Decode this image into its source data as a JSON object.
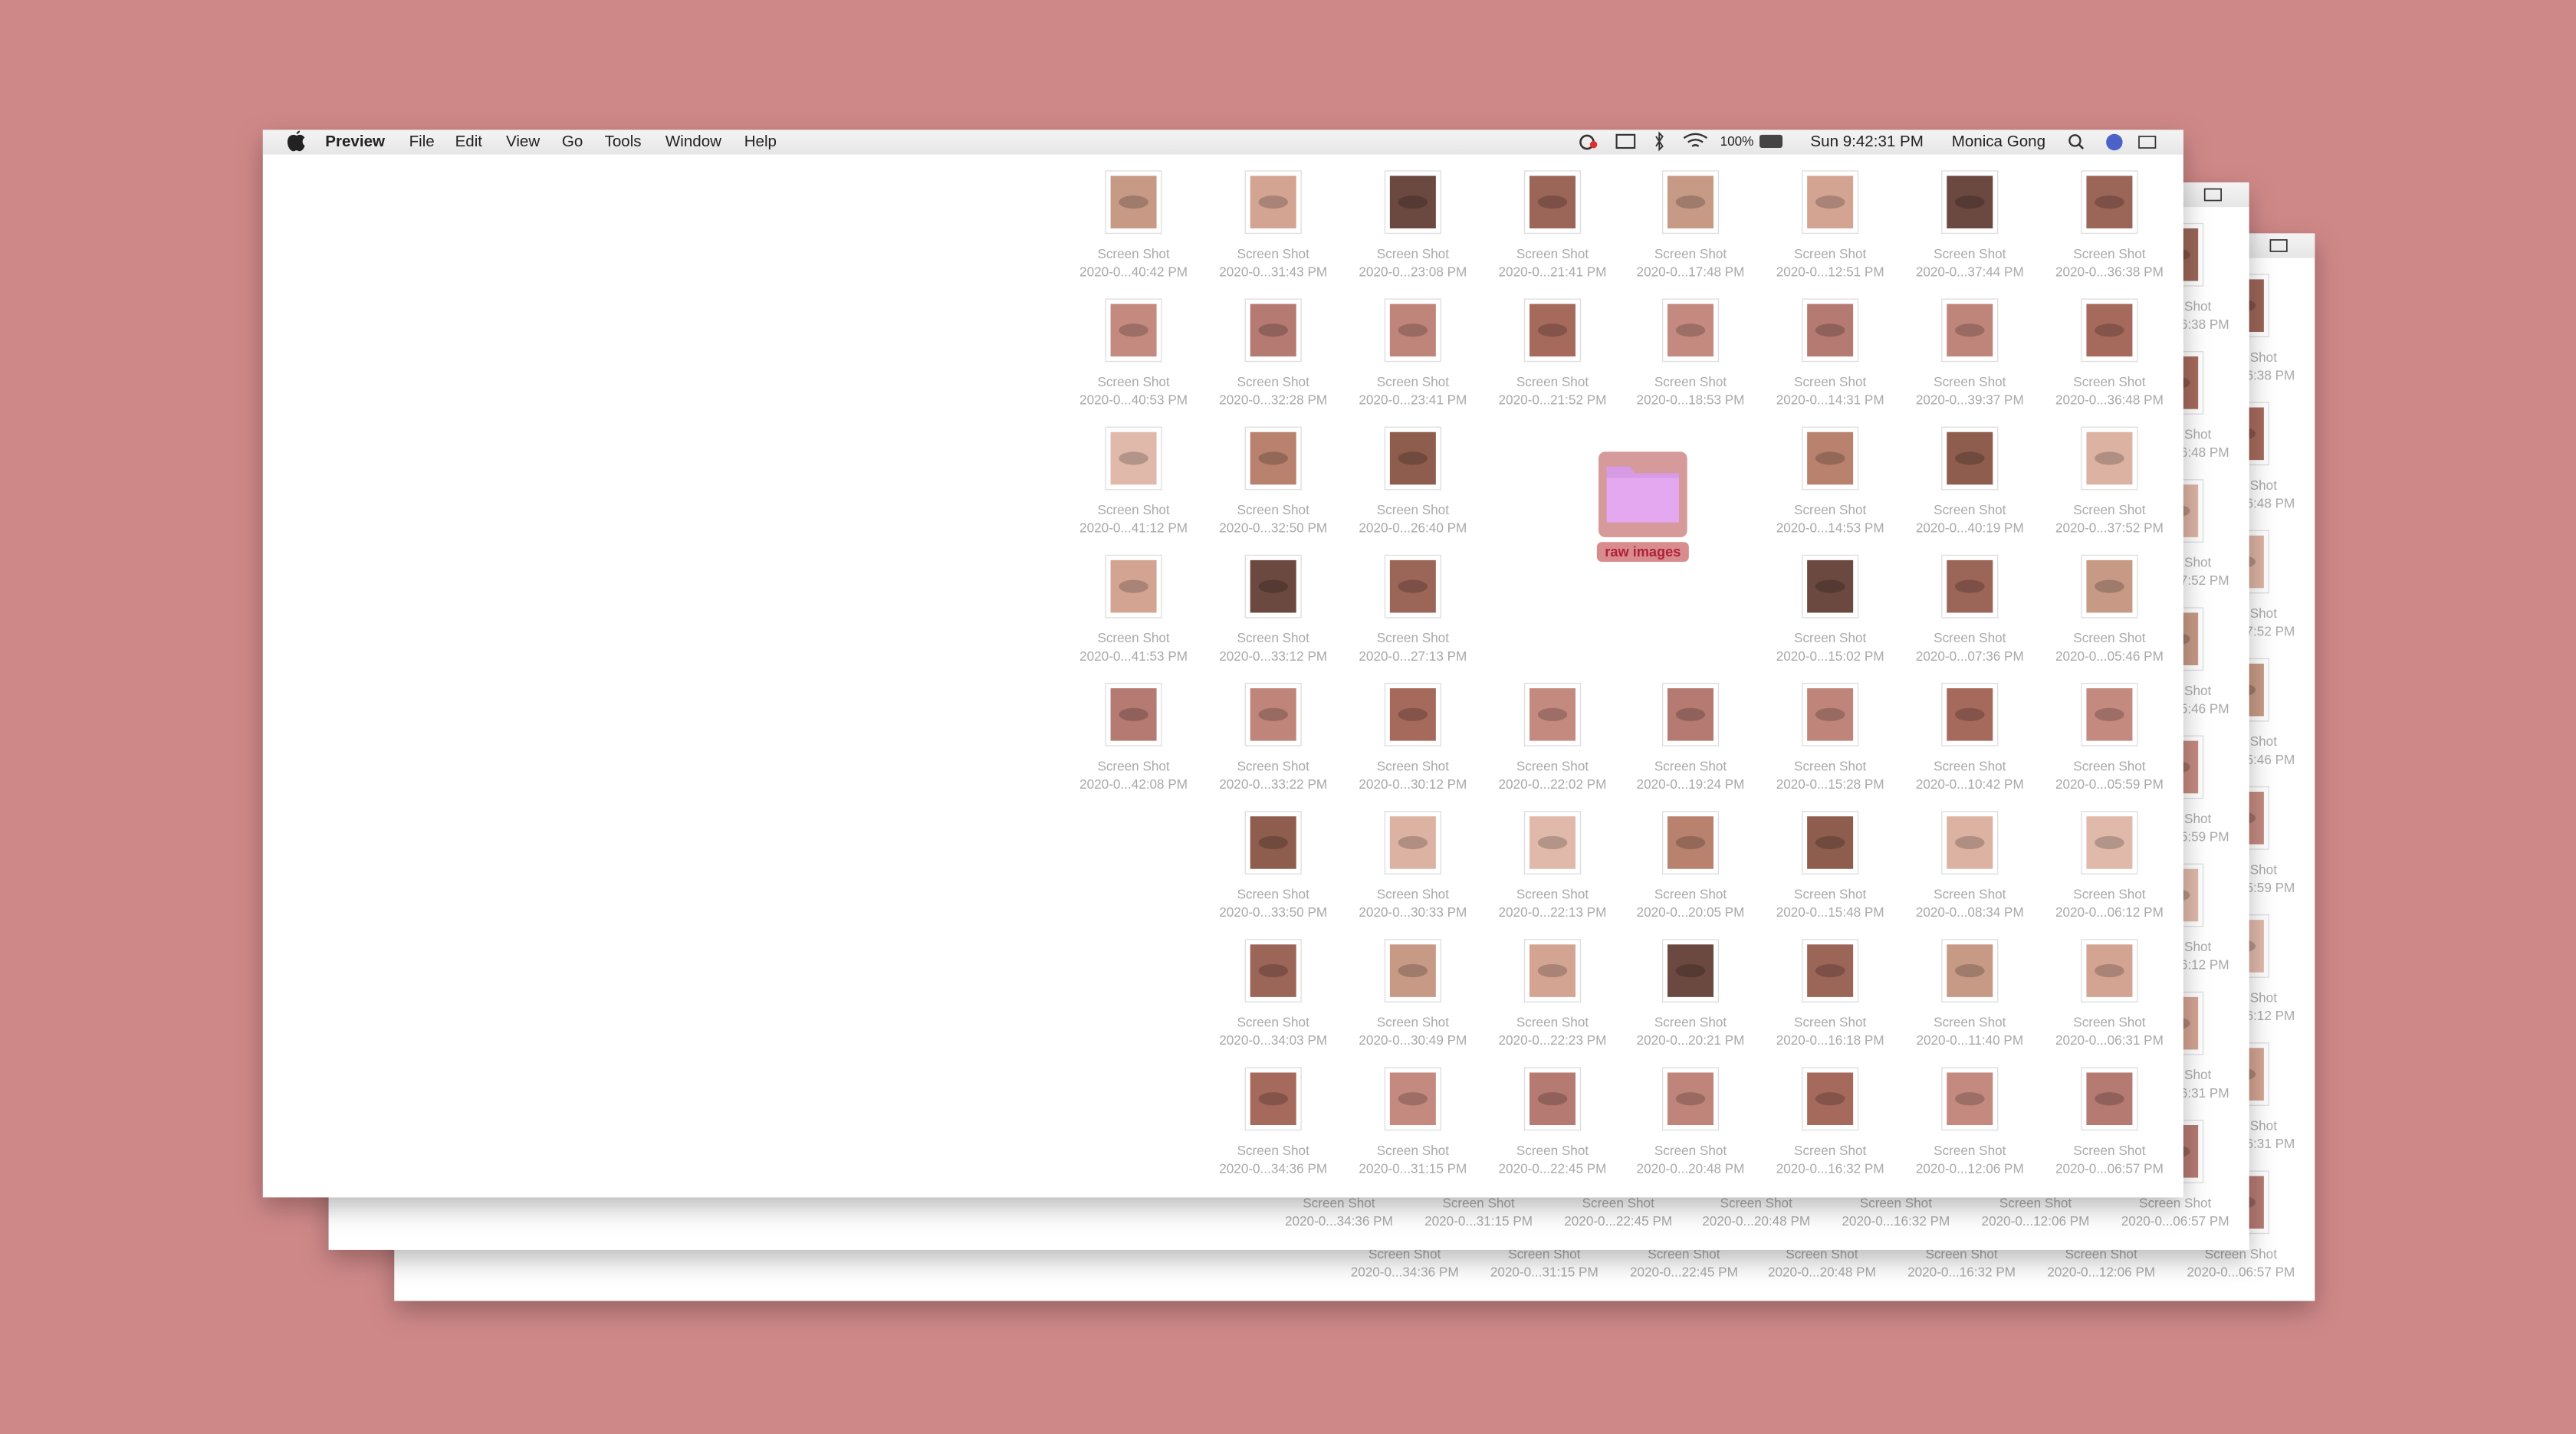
{
  "menu_bar": {
    "app": "Preview",
    "items": [
      "File",
      "Edit",
      "View",
      "Go",
      "Tools",
      "Window",
      "Help"
    ],
    "battery": "100%",
    "clock": "Sun 9:42:31 PM",
    "user": "Monica Gong"
  },
  "folder": {
    "label": "raw images"
  },
  "grid": [
    [
      {
        "name": "Screen Shot",
        "date": "2020-0...40:42 PM"
      },
      {
        "name": "Screen Shot",
        "date": "2020-0...31:43 PM"
      },
      {
        "name": "Screen Shot",
        "date": "2020-0...23:08 PM"
      },
      {
        "name": "Screen Shot",
        "date": "2020-0...21:41 PM"
      },
      {
        "name": "Screen Shot",
        "date": "2020-0...17:48 PM"
      },
      {
        "name": "Screen Shot",
        "date": "2020-0...12:51 PM"
      },
      {
        "name": "Screen Shot",
        "date": "2020-0...37:44 PM"
      },
      {
        "name": "Screen Shot",
        "date": "2020-0...36:38 PM"
      }
    ],
    [
      {
        "name": "Screen Shot",
        "date": "2020-0...40:53 PM"
      },
      {
        "name": "Screen Shot",
        "date": "2020-0...32:28 PM"
      },
      {
        "name": "Screen Shot",
        "date": "2020-0...23:41 PM"
      },
      {
        "name": "Screen Shot",
        "date": "2020-0...21:52 PM"
      },
      {
        "name": "Screen Shot",
        "date": "2020-0...18:53 PM"
      },
      {
        "name": "Screen Shot",
        "date": "2020-0...14:31 PM"
      },
      {
        "name": "Screen Shot",
        "date": "2020-0...39:37 PM"
      },
      {
        "name": "Screen Shot",
        "date": "2020-0...36:48 PM"
      }
    ],
    [
      {
        "name": "Screen Shot",
        "date": "2020-0...41:12 PM"
      },
      {
        "name": "Screen Shot",
        "date": "2020-0...32:50 PM"
      },
      {
        "name": "Screen Shot",
        "date": "2020-0...26:40 PM"
      },
      null,
      null,
      {
        "name": "Screen Shot",
        "date": "2020-0...14:53 PM"
      },
      {
        "name": "Screen Shot",
        "date": "2020-0...40:19 PM"
      },
      {
        "name": "Screen Shot",
        "date": "2020-0...37:52 PM"
      }
    ],
    [
      {
        "name": "Screen Shot",
        "date": "2020-0...41:53 PM"
      },
      {
        "name": "Screen Shot",
        "date": "2020-0...33:12 PM"
      },
      {
        "name": "Screen Shot",
        "date": "2020-0...27:13 PM"
      },
      null,
      null,
      {
        "name": "Screen Shot",
        "date": "2020-0...15:02 PM"
      },
      {
        "name": "Screen Shot",
        "date": "2020-0...07:36 PM"
      },
      {
        "name": "Screen Shot",
        "date": "2020-0...05:46 PM"
      }
    ],
    [
      {
        "name": "Screen Shot",
        "date": "2020-0...42:08 PM"
      },
      {
        "name": "Screen Shot",
        "date": "2020-0...33:22 PM"
      },
      {
        "name": "Screen Shot",
        "date": "2020-0...30:12 PM"
      },
      {
        "name": "Screen Shot",
        "date": "2020-0...22:02 PM"
      },
      {
        "name": "Screen Shot",
        "date": "2020-0...19:24 PM"
      },
      {
        "name": "Screen Shot",
        "date": "2020-0...15:28 PM"
      },
      {
        "name": "Screen Shot",
        "date": "2020-0...10:42 PM"
      },
      {
        "name": "Screen Shot",
        "date": "2020-0...05:59 PM"
      }
    ],
    [
      null,
      {
        "name": "Screen Shot",
        "date": "2020-0...33:50 PM"
      },
      {
        "name": "Screen Shot",
        "date": "2020-0...30:33 PM"
      },
      {
        "name": "Screen Shot",
        "date": "2020-0...22:13 PM"
      },
      {
        "name": "Screen Shot",
        "date": "2020-0...20:05 PM"
      },
      {
        "name": "Screen Shot",
        "date": "2020-0...15:48 PM"
      },
      {
        "name": "Screen Shot",
        "date": "2020-0...08:34 PM"
      },
      {
        "name": "Screen Shot",
        "date": "2020-0...06:12 PM"
      }
    ],
    [
      null,
      {
        "name": "Screen Shot",
        "date": "2020-0...34:03 PM"
      },
      {
        "name": "Screen Shot",
        "date": "2020-0...30:49 PM"
      },
      {
        "name": "Screen Shot",
        "date": "2020-0...22:23 PM"
      },
      {
        "name": "Screen Shot",
        "date": "2020-0...20:21 PM"
      },
      {
        "name": "Screen Shot",
        "date": "2020-0...16:18 PM"
      },
      {
        "name": "Screen Shot",
        "date": "2020-0...11:40 PM"
      },
      {
        "name": "Screen Shot",
        "date": "2020-0...06:31 PM"
      }
    ],
    [
      null,
      {
        "name": "Screen Shot",
        "date": "2020-0...34:36 PM"
      },
      {
        "name": "Screen Shot",
        "date": "2020-0...31:15 PM"
      },
      {
        "name": "Screen Shot",
        "date": "2020-0...22:45 PM"
      },
      {
        "name": "Screen Shot",
        "date": "2020-0...20:48 PM"
      },
      {
        "name": "Screen Shot",
        "date": "2020-0...16:32 PM"
      },
      {
        "name": "Screen Shot",
        "date": "2020-0...12:06 PM"
      },
      {
        "name": "Screen Shot",
        "date": "2020-0...06:57 PM"
      }
    ]
  ]
}
